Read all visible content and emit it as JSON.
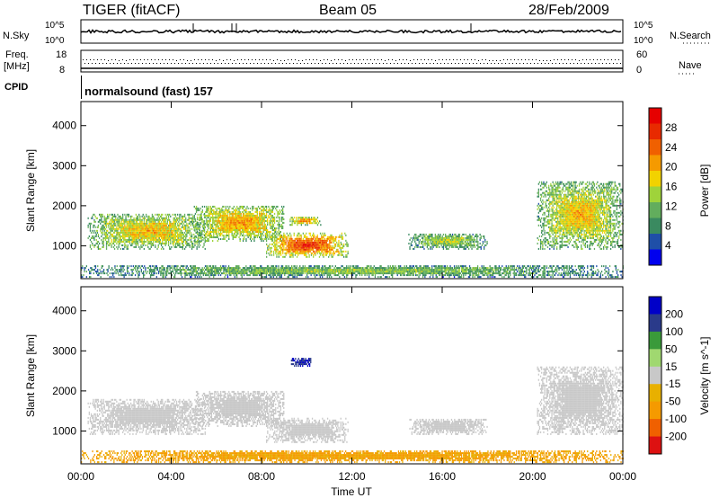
{
  "header": {
    "radar": "TIGER (fitACF)",
    "beam": "Beam 05",
    "date": "28/Feb/2009"
  },
  "strips": {
    "nsky_label": "N.Sky",
    "nsky_ticks": [
      "10^5",
      "10^0"
    ],
    "nsearch_label": "N.Search",
    "nsearch_ticks": [
      "10^5",
      "10^0"
    ],
    "freq_label": "Freq.",
    "freq_unit": "[MHz]",
    "freq_ticks": [
      "18",
      "8"
    ],
    "nave_label": "Nave",
    "nave_ticks": [
      "60",
      "0"
    ],
    "cpid_label": "CPID",
    "cpid_text": "normalsound (fast) 157"
  },
  "colors": {
    "power": [
      "#0000ee",
      "#1f4fa8",
      "#3a8a60",
      "#62ad5d",
      "#9fd33a",
      "#f2d200",
      "#f59a00",
      "#f06000",
      "#e82a00",
      "#e60000"
    ],
    "velocity": [
      "#dd1111",
      "#f06000",
      "#f59a00",
      "#e8b000",
      "#c8c8c8",
      "#a0d870",
      "#3a9a3a",
      "#2a3a8a",
      "#0000c8"
    ]
  },
  "chart_data": [
    {
      "type": "heatmap",
      "name": "power-panel",
      "ylabel": "Slant Range [km]",
      "yticks": [
        1000,
        2000,
        3000,
        4000
      ],
      "ylim": [
        180,
        4600
      ],
      "xlim_hours": [
        0,
        24
      ],
      "xticks": [
        "00:00",
        "04:00",
        "08:00",
        "12:00",
        "16:00",
        "20:00",
        "00:00"
      ],
      "colorbar": {
        "label": "Power [dB]",
        "ticks": [
          "4",
          "8",
          "12",
          "16",
          "20",
          "24",
          "28"
        ],
        "range": [
          0,
          30
        ]
      },
      "echo_regions": [
        {
          "t": [
            0.3,
            5.5
          ],
          "r": [
            900,
            1800
          ],
          "level": 18
        },
        {
          "t": [
            5.0,
            9.0
          ],
          "r": [
            1100,
            2000
          ],
          "level": 20
        },
        {
          "t": [
            8.2,
            11.8
          ],
          "r": [
            700,
            1300
          ],
          "level": 26
        },
        {
          "t": [
            9.2,
            10.6
          ],
          "r": [
            1500,
            1700
          ],
          "level": 22
        },
        {
          "t": [
            14.5,
            18.0
          ],
          "r": [
            900,
            1300
          ],
          "level": 14
        },
        {
          "t": [
            20.2,
            24.0
          ],
          "r": [
            900,
            2600
          ],
          "level": 18
        },
        {
          "t": [
            0.0,
            24.0
          ],
          "r": [
            200,
            500
          ],
          "level": 12
        }
      ]
    },
    {
      "type": "heatmap",
      "name": "velocity-panel",
      "ylabel": "Slant Range [km]",
      "xlabel": "Time UT",
      "yticks": [
        1000,
        2000,
        3000,
        4000
      ],
      "ylim": [
        180,
        4600
      ],
      "xlim_hours": [
        0,
        24
      ],
      "xticks": [
        "00:00",
        "04:00",
        "08:00",
        "12:00",
        "16:00",
        "20:00",
        "00:00"
      ],
      "colorbar": {
        "label": "Velocity [m s^-1]",
        "ticks": [
          "200",
          "100",
          "50",
          "15",
          "-15",
          "-50",
          "-100",
          "-200"
        ]
      },
      "echo_regions": [
        {
          "t": [
            0.3,
            5.5
          ],
          "r": [
            900,
            1800
          ],
          "level": 0
        },
        {
          "t": [
            5.0,
            9.0
          ],
          "r": [
            1100,
            2000
          ],
          "level": 0
        },
        {
          "t": [
            8.2,
            11.8
          ],
          "r": [
            700,
            1300
          ],
          "level": 0
        },
        {
          "t": [
            9.3,
            10.2
          ],
          "r": [
            2600,
            2800
          ],
          "level": 200
        },
        {
          "t": [
            14.5,
            18.0
          ],
          "r": [
            900,
            1300
          ],
          "level": 0
        },
        {
          "t": [
            20.2,
            24.0
          ],
          "r": [
            900,
            2600
          ],
          "level": 0
        },
        {
          "t": [
            0.0,
            24.0
          ],
          "r": [
            200,
            500
          ],
          "level": -60
        }
      ]
    }
  ]
}
